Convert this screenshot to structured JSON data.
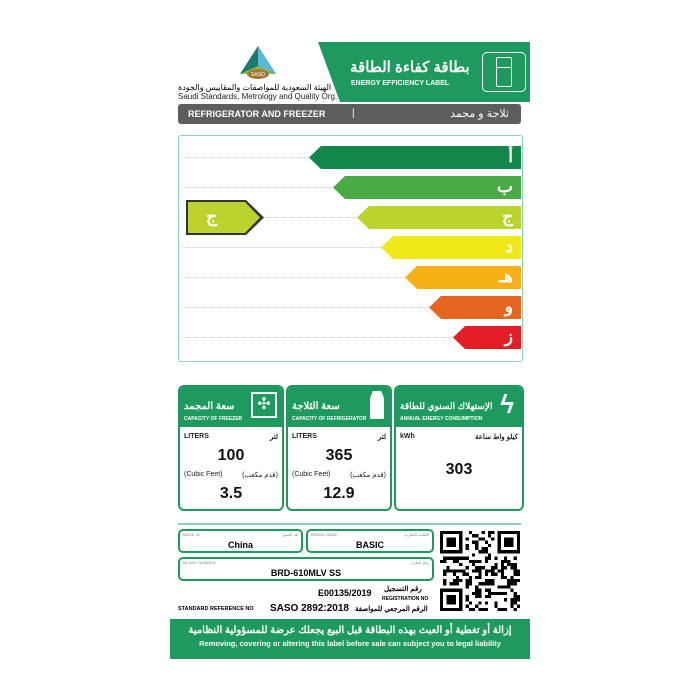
{
  "header": {
    "org_ar": "الهيئة السعودية للمواصفات والمقاييس والجودة",
    "org_en": "Saudi Standards, Metrology and Quality Org.",
    "logo_text": "SASO",
    "title_ar": "بطاقة كفاءة الطاقة",
    "title_en": "ENERGY EFFICIENCY LABEL",
    "icon": "refrigerator-icon"
  },
  "product": {
    "type_en": "REFRIGERATOR AND FREEZER",
    "separator": "|",
    "type_ar": "ثلاجة و مجمد"
  },
  "scale": {
    "classes": [
      {
        "label": "أ",
        "color": "#12874a"
      },
      {
        "label": "ب",
        "color": "#4aab46"
      },
      {
        "label": "ج",
        "color": "#bcd32e"
      },
      {
        "label": "د",
        "color": "#f1e81a"
      },
      {
        "label": "هـ",
        "color": "#f7b016"
      },
      {
        "label": "و",
        "color": "#e7661f"
      },
      {
        "label": "ز",
        "color": "#e41e26"
      }
    ],
    "rating": "ج",
    "rating_color": "#bcd32e"
  },
  "cards": {
    "freezer": {
      "title_ar": "سعة المجمد",
      "title_en": "CAPACITY OF FREEZER",
      "icon": "expand-arrows-icon",
      "unit_en": "LITERS",
      "unit_ar": "لتر",
      "liters": "100",
      "cf_en": "(Cubic Feet)",
      "cf_ar": "(قدم مكعب)",
      "cubic_feet": "3.5"
    },
    "fridge": {
      "title_ar": "سعة الثلاجة",
      "title_en": "CAPACITY OF REFRIGERATOR",
      "icon": "milk-carton-icon",
      "unit_en": "LITERS",
      "unit_ar": "لتر",
      "liters": "365",
      "cf_en": "(Cubic Feet)",
      "cf_ar": "(قدم مكعب)",
      "cubic_feet": "12.9"
    },
    "energy": {
      "title_ar": "الإستهلاك السنوي للطاقة",
      "title_en": "ANNUAL ENERGY CONSUMPTION",
      "icon": "lightning-icon",
      "unit_en": "kWh",
      "unit_ar": "كيلو واط ساعة",
      "value": "303"
    }
  },
  "details": {
    "made_in_label": "MADE IN",
    "made_in_label_ar": "بلد الصنع",
    "made_in": "China",
    "brand_label": "BRAND NAME",
    "brand_label_ar": "العلامة التجارية",
    "brand": "BASIC",
    "model_label": "MODEL NUMBER",
    "model_label_ar": "رقم الطراز",
    "model": "BRD-610MLV SS",
    "reg_label_ar": "رقم التسجيل",
    "reg_label_en": "REGISTRATION NO",
    "registration": "E00135/2019",
    "std_label_en": "STANDARD REFERENCE NO",
    "std_label_ar": "الرقم المرجعي للمواصفة",
    "standard": "SASO 2892:2018"
  },
  "footer": {
    "warning_ar": "إزالة أو تغطية أو العبث بهذه البطاقة قبل البيع يجعلك عرضة للمسؤولية النظامية",
    "warning_en": "Removing, covering or altering this label before sale can subject you to legal liability"
  }
}
